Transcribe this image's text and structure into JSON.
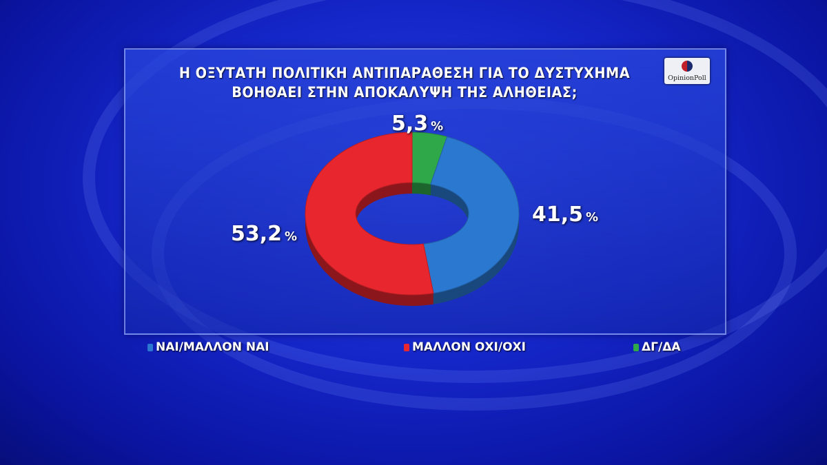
{
  "chart_data": {
    "type": "pie",
    "title": "Η ΟΞΥΤΑΤΗ ΠΟΛΙΤΙΚΗ ΑΝΤΙΠΑΡΑΘΕΣΗ ΓΙΑ ΤΟ ΔΥΣΤΥΧΗΜΑ",
    "subtitle": "ΒΟΗΘΑΕΙ ΣΤΗΝ ΑΠΟΚΑΛΥΨΗ ΤΗΣ ΑΛΗΘΕΙΑΣ;",
    "donut": true,
    "legend_position": "bottom",
    "slices": [
      {
        "name": "ΔΓ/ΔΑ",
        "value": 5.3,
        "label": "5,3",
        "color": "#2fa84a"
      },
      {
        "name": "ΝΑΙ/ΜΑΛΛΟΝ ΝΑΙ",
        "value": 41.5,
        "label": "41,5",
        "color": "#2a78d0"
      },
      {
        "name": "ΜΑΛΛΟΝ ΟΧΙ/ΟΧΙ",
        "value": 53.2,
        "label": "53,2",
        "color": "#e8262e"
      }
    ],
    "unit": "%"
  },
  "logo": "OpinionPoll"
}
